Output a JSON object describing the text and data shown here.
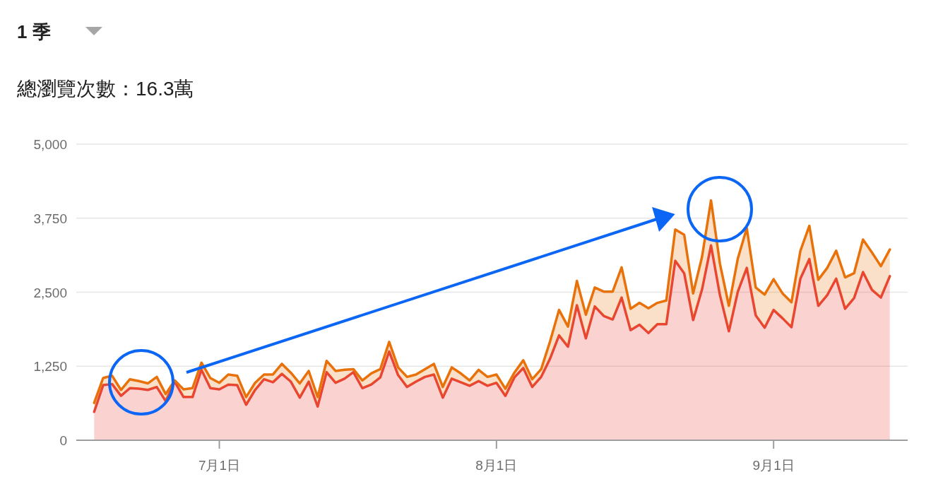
{
  "chart_data": {
    "type": "area",
    "stacked": true,
    "subtitle": "1 季",
    "title": "總瀏覽次數：16.3萬",
    "x": [
      "--06-17",
      "--06-18",
      "--06-19",
      "--06-20",
      "--06-21",
      "--06-22",
      "--06-23",
      "--06-24",
      "--06-25",
      "--06-26",
      "--06-27",
      "--06-28",
      "--06-29",
      "--06-30",
      "--07-01",
      "--07-02",
      "--07-03",
      "--07-04",
      "--07-05",
      "--07-06",
      "--07-07",
      "--07-08",
      "--07-09",
      "--07-10",
      "--07-11",
      "--07-12",
      "--07-13",
      "--07-14",
      "--07-15",
      "--07-16",
      "--07-17",
      "--07-18",
      "--07-19",
      "--07-20",
      "--07-21",
      "--07-22",
      "--07-23",
      "--07-24",
      "--07-25",
      "--07-26",
      "--07-27",
      "--07-28",
      "--07-29",
      "--07-30",
      "--07-31",
      "--08-01",
      "--08-02",
      "--08-03",
      "--08-04",
      "--08-05",
      "--08-06",
      "--08-07",
      "--08-08",
      "--08-09",
      "--08-10",
      "--08-11",
      "--08-12",
      "--08-13",
      "--08-14",
      "--08-15",
      "--08-16",
      "--08-17",
      "--08-18",
      "--08-19",
      "--08-20",
      "--08-21",
      "--08-22",
      "--08-23",
      "--08-24",
      "--08-25",
      "--08-26",
      "--08-27",
      "--08-28",
      "--08-29",
      "--08-30",
      "--08-31",
      "--09-01",
      "--09-02",
      "--09-03",
      "--09-04",
      "--09-05",
      "--09-06",
      "--09-07",
      "--09-08",
      "--09-09",
      "--09-10",
      "--09-11",
      "--09-12",
      "--09-13",
      "--09-14"
    ],
    "series": [
      {
        "color": "#e94235",
        "values": [
          480,
          930,
          950,
          750,
          880,
          870,
          850,
          900,
          660,
          990,
          730,
          730,
          1190,
          880,
          860,
          940,
          930,
          600,
          850,
          1030,
          980,
          1120,
          990,
          720,
          990,
          570,
          1150,
          970,
          1040,
          1150,
          880,
          940,
          1060,
          1500,
          1100,
          900,
          990,
          1070,
          1110,
          720,
          1040,
          980,
          920,
          1000,
          920,
          970,
          750,
          1060,
          1220,
          900,
          1070,
          1380,
          1770,
          1580,
          2280,
          1720,
          2260,
          2100,
          2040,
          2410,
          1860,
          1950,
          1810,
          1960,
          1960,
          3030,
          2820,
          2030,
          2550,
          3290,
          2450,
          1840,
          2510,
          2910,
          2110,
          1900,
          2200,
          2060,
          1910,
          2730,
          3060,
          2270,
          2450,
          2730,
          2220,
          2400,
          2840,
          2540,
          2410,
          2770
        ]
      },
      {
        "color": "#e8710a",
        "values": [
          150,
          120,
          140,
          100,
          150,
          130,
          110,
          170,
          120,
          20,
          130,
          150,
          120,
          170,
          110,
          170,
          160,
          130,
          120,
          80,
          130,
          170,
          150,
          240,
          180,
          160,
          190,
          200,
          150,
          50,
          130,
          190,
          140,
          160,
          130,
          170,
          120,
          130,
          180,
          180,
          190,
          150,
          90,
          190,
          150,
          140,
          120,
          80,
          130,
          130,
          130,
          290,
          430,
          340,
          410,
          400,
          320,
          410,
          470,
          510,
          360,
          370,
          420,
          360,
          400,
          530,
          650,
          450,
          550,
          760,
          530,
          430,
          560,
          670,
          470,
          560,
          520,
          420,
          420,
          470,
          560,
          440,
          460,
          470,
          530,
          420,
          550,
          630,
          530,
          450
        ]
      }
    ],
    "xlim": [
      "--06-15",
      "--09-16"
    ],
    "xticks": [
      {
        "value": "--07-01",
        "label": "7月1日"
      },
      {
        "value": "--08-01",
        "label": "8月1日"
      },
      {
        "value": "--09-01",
        "label": "9月1日"
      }
    ],
    "ylim": [
      0,
      5000
    ],
    "yticks": [
      0,
      {
        "value": 1250,
        "label": "1,250"
      },
      {
        "value": 2500,
        "label": "2,500"
      },
      {
        "value": 3750,
        "label": "3,750"
      },
      {
        "value": 5000,
        "label": "5,000"
      }
    ],
    "grid": "y"
  }
}
